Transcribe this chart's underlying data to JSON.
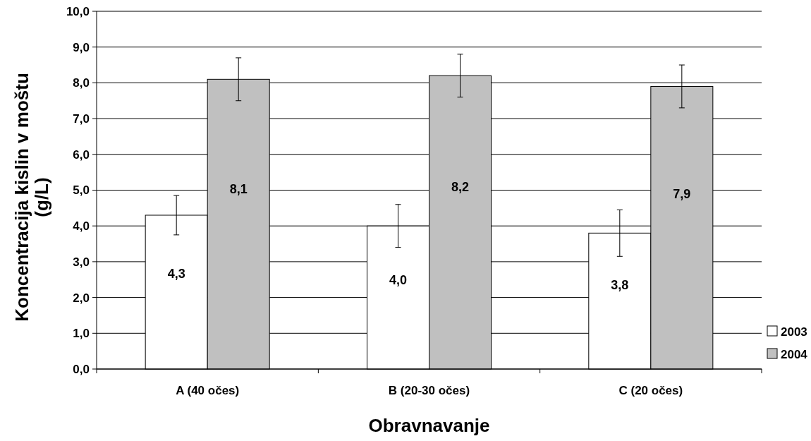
{
  "chart_data": {
    "type": "bar",
    "xlabel": "Obravnavanje",
    "ylabel": "Koncentracija kislin v moštu (g/L)",
    "categories": [
      "A (40 očes)",
      "B (20-30 očes)",
      "C (20 očes)"
    ],
    "series": [
      {
        "name": "2003",
        "color": "#ffffff",
        "values": [
          4.3,
          4.0,
          3.8
        ],
        "errors": [
          0.55,
          0.6,
          0.65
        ],
        "value_labels": [
          "4,3",
          "4,0",
          "3,8"
        ]
      },
      {
        "name": "2004",
        "color": "#c0c0c0",
        "values": [
          8.1,
          8.2,
          7.9
        ],
        "errors": [
          0.6,
          0.6,
          0.6
        ],
        "value_labels": [
          "8,1",
          "8,2",
          "7,9"
        ]
      }
    ],
    "ylim": [
      0,
      10
    ],
    "yticks": [
      {
        "value": 0,
        "label": "0,0"
      },
      {
        "value": 1,
        "label": "1,0"
      },
      {
        "value": 2,
        "label": "2,0"
      },
      {
        "value": 3,
        "label": "3,0"
      },
      {
        "value": 4,
        "label": "4,0"
      },
      {
        "value": 5,
        "label": "5,0"
      },
      {
        "value": 6,
        "label": "6,0"
      },
      {
        "value": 7,
        "label": "7,0"
      },
      {
        "value": 8,
        "label": "8,0"
      },
      {
        "value": 9,
        "label": "9,0"
      },
      {
        "value": 10,
        "label": "10,0"
      }
    ],
    "grid": "y",
    "legend": "right"
  }
}
